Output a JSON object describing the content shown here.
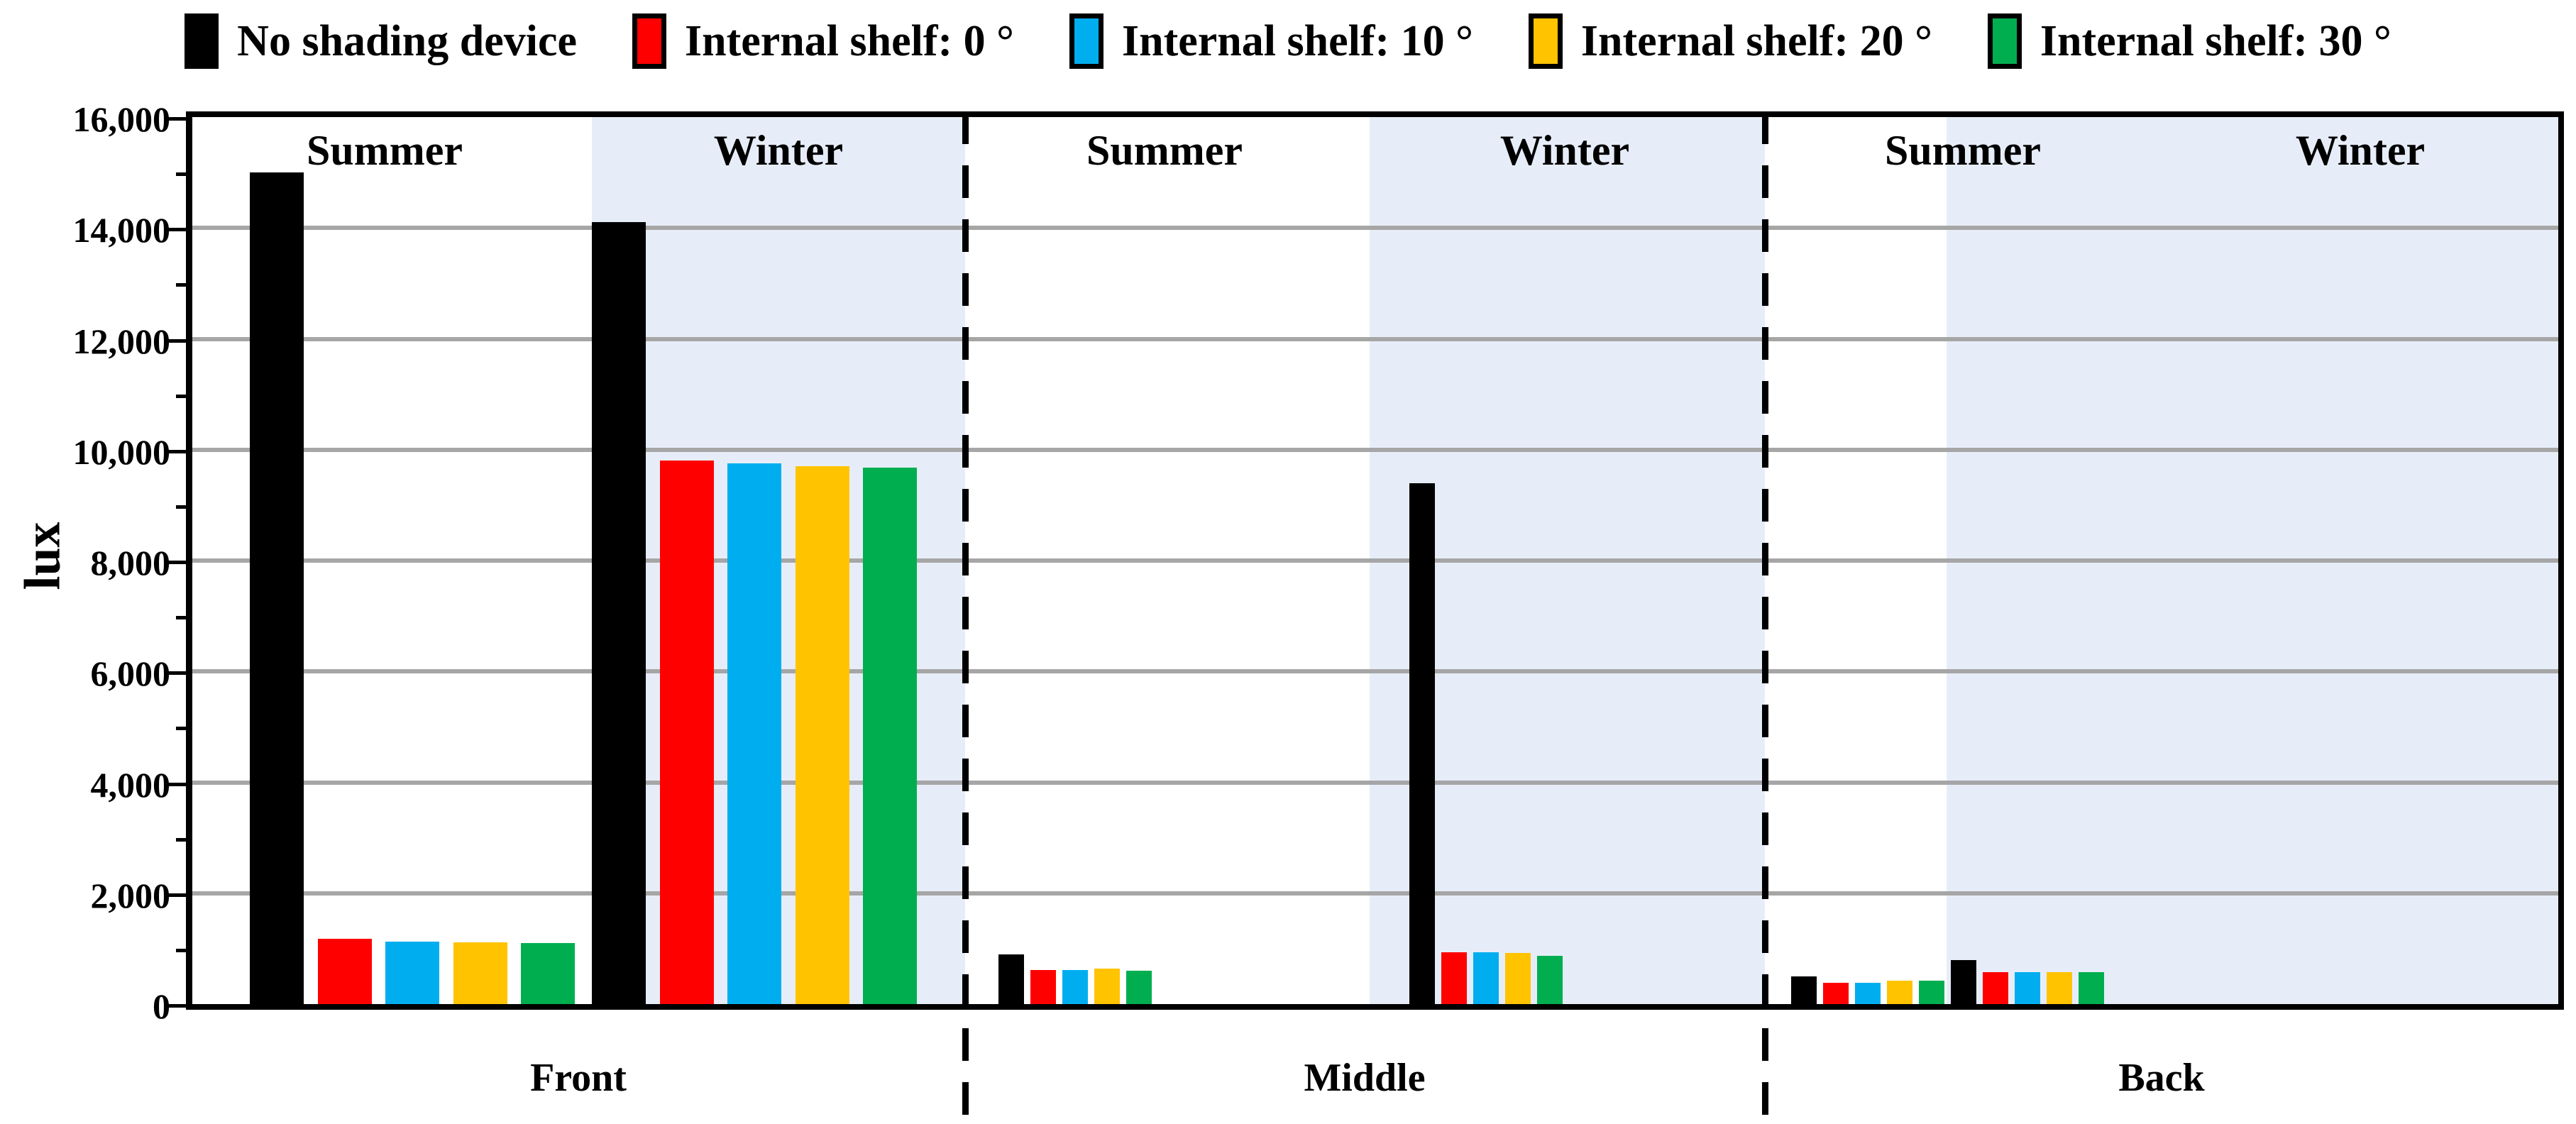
{
  "chart_data": {
    "type": "bar",
    "title": "",
    "xlabel": "",
    "ylabel": "lux",
    "ylim": [
      0,
      16000
    ],
    "grid": "horizontal-major",
    "legend_position": "top",
    "yticks": {
      "major_interval": 2000,
      "minor_interval": 1000,
      "labels": [
        "0",
        "2,000",
        "4,000",
        "6,000",
        "8,000",
        "10,000",
        "12,000",
        "14,000",
        "16,000"
      ]
    },
    "series": [
      {
        "name": "No shading device",
        "color": "#000000"
      },
      {
        "name": "Internal shelf: 0 °",
        "color": "#FF0000"
      },
      {
        "name": "Internal shelf: 10 °",
        "color": "#00AEEF"
      },
      {
        "name": "Internal shelf: 20 °",
        "color": "#FFC300"
      },
      {
        "name": "Internal shelf: 30 °",
        "color": "#00AE50"
      }
    ],
    "panels": [
      {
        "label": "Front",
        "seasons": [
          {
            "label": "Summer",
            "values": [
              15000,
              1180,
              1130,
              1120,
              1100
            ]
          },
          {
            "label": "Winter",
            "values": [
              14100,
              9800,
              9750,
              9700,
              9680
            ]
          }
        ]
      },
      {
        "label": "Middle",
        "seasons": [
          {
            "label": "Summer",
            "values": [
              900,
              620,
              620,
              640,
              600
            ]
          },
          {
            "label": "Winter",
            "values": [
              9400,
              930,
              940,
              920,
              870
            ]
          }
        ]
      },
      {
        "label": "Back",
        "seasons": [
          {
            "label": "Summer",
            "values": [
              500,
              390,
              380,
              420,
              420
            ]
          },
          {
            "label": "Winter",
            "values": [
              790,
              580,
              580,
              580,
              570
            ]
          }
        ]
      }
    ],
    "style": {
      "winter_band_color": "#E7EDF8",
      "gridline_color": "#A6A6A6",
      "axis_color": "#000000"
    }
  }
}
